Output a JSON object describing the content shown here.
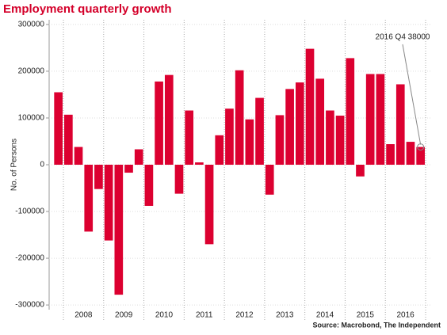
{
  "chart_data": {
    "type": "bar",
    "title": "Employment quarterly growth",
    "ylabel": "No. of Persons",
    "source": "Source: Macrobond, The Independent",
    "annotation": "2016 Q4 38000",
    "year_labels": [
      "2008",
      "2009",
      "2010",
      "2011",
      "2012",
      "2013",
      "2014",
      "2015",
      "2016"
    ],
    "categories": [
      null,
      null,
      null,
      null,
      null,
      null,
      null,
      null,
      null,
      null,
      null,
      null,
      null,
      null,
      null,
      null,
      null,
      null,
      null,
      null,
      null,
      null,
      null,
      null,
      null,
      null,
      null,
      null,
      null,
      null,
      null,
      null,
      null,
      null,
      null,
      null,
      null
    ],
    "values": [
      155000,
      107000,
      38000,
      -143000,
      -52000,
      -162000,
      -278000,
      -17000,
      33000,
      -88000,
      178000,
      192000,
      -62000,
      116000,
      5000,
      -170000,
      63000,
      120000,
      202000,
      97000,
      143000,
      -64000,
      106000,
      162000,
      176000,
      248000,
      184000,
      116000,
      105000,
      228000,
      -25000,
      194000,
      194000,
      44000,
      172000,
      49000,
      38000
    ],
    "color": "#dc0030",
    "ylim": [
      -310000,
      310000
    ],
    "yticks": [
      -300000,
      -200000,
      -100000,
      0,
      100000,
      200000,
      300000
    ],
    "grid": true
  }
}
